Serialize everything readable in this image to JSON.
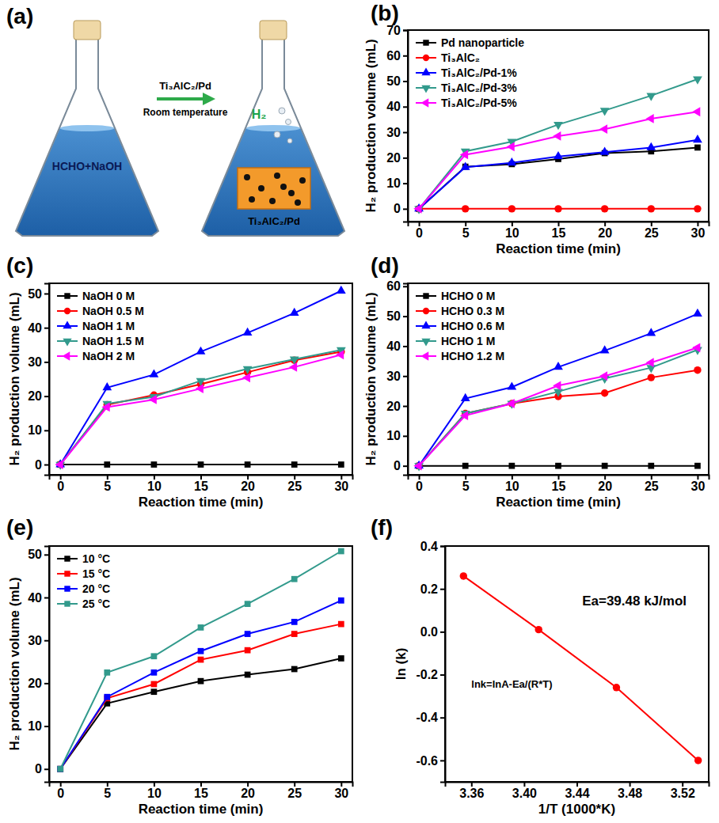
{
  "diagram": {
    "panel_label": "(a)",
    "reagent": "Ti₃AlC₂/Pd",
    "condition": "Room temperature",
    "solution": "HCHO+NaOH",
    "gas": "H₂",
    "catalyst": "Ti₃AlC₂/Pd"
  },
  "chart_data": [
    {
      "type": "line",
      "panel_label": "(b)",
      "x_label": "Reaction time (min)",
      "y_label": "H₂ production volume (mL)",
      "x": [
        0,
        5,
        10,
        15,
        20,
        25,
        30
      ],
      "xlim": [
        -1.2,
        31.2
      ],
      "xticks": [
        0,
        5,
        10,
        15,
        20,
        25,
        30
      ],
      "ylim": [
        -5,
        70
      ],
      "yticks": [
        0,
        10,
        20,
        30,
        40,
        50,
        60,
        70
      ],
      "grid": false,
      "legend": "upper left",
      "series": [
        {
          "name": "Pd nanoparticle",
          "color": "#000000",
          "marker": "square",
          "line_style": "solid",
          "values": [
            0,
            16.5,
            17.5,
            19.5,
            21.8,
            22.5,
            24
          ]
        },
        {
          "name": "Ti₃AlC₂",
          "color": "#ff0000",
          "marker": "circle",
          "line_style": "solid",
          "values": [
            0,
            0,
            0,
            0,
            0,
            0,
            0
          ]
        },
        {
          "name": "Ti₃AlC₂/Pd-1%",
          "color": "#0000ff",
          "marker": "triangle-up",
          "line_style": "solid",
          "values": [
            0,
            16.3,
            18,
            20.5,
            22.2,
            24,
            27
          ]
        },
        {
          "name": "Ti₃AlC₂/Pd-3%",
          "color": "#329a8c",
          "marker": "triangle-down",
          "line_style": "solid",
          "values": [
            0,
            22.5,
            26.3,
            33,
            38.5,
            44.3,
            50.8
          ]
        },
        {
          "name": "Ti₃AlC₂/Pd-5%",
          "color": "#ff00ff",
          "marker": "triangle-left",
          "line_style": "solid",
          "values": [
            0,
            21.2,
            24.3,
            28.5,
            31.2,
            35.3,
            38
          ]
        }
      ]
    },
    {
      "type": "line",
      "panel_label": "(c)",
      "x_label": "Reaction time (min)",
      "y_label": "H₂ production volume (mL)",
      "x": [
        0,
        5,
        10,
        15,
        20,
        25,
        30
      ],
      "xlim": [
        -1.2,
        31.2
      ],
      "xticks": [
        0,
        5,
        10,
        15,
        20,
        25,
        30
      ],
      "ylim": [
        -3,
        53
      ],
      "yticks": [
        0,
        10,
        20,
        30,
        40,
        50
      ],
      "grid": false,
      "legend": "upper left",
      "series": [
        {
          "name": "NaOH 0 M",
          "color": "#000000",
          "marker": "square",
          "line_style": "solid",
          "values": [
            0,
            0,
            0,
            0,
            0,
            0,
            0
          ]
        },
        {
          "name": "NaOH 0.5 M",
          "color": "#ff0000",
          "marker": "circle",
          "line_style": "solid",
          "values": [
            0,
            17.5,
            20.3,
            23.5,
            27,
            30.5,
            33
          ]
        },
        {
          "name": "NaOH 1 M",
          "color": "#0000ff",
          "marker": "triangle-up",
          "line_style": "solid",
          "values": [
            0,
            22.5,
            26.3,
            33,
            38.5,
            44.3,
            50.8
          ]
        },
        {
          "name": "NaOH 1.5 M",
          "color": "#329a8c",
          "marker": "triangle-down",
          "line_style": "solid",
          "values": [
            0,
            17.8,
            19.8,
            24.5,
            28,
            30.8,
            33.5
          ]
        },
        {
          "name": "NaOH 2 M",
          "color": "#ff00ff",
          "marker": "triangle-left",
          "line_style": "solid",
          "values": [
            0,
            16.8,
            19,
            22.2,
            25.4,
            28.5,
            32.1
          ]
        }
      ]
    },
    {
      "type": "line",
      "panel_label": "(d)",
      "x_label": "Reaction time (min)",
      "y_label": "H₂ production volume (mL)",
      "x": [
        0,
        5,
        10,
        15,
        20,
        25,
        30
      ],
      "xlim": [
        -1.2,
        31.2
      ],
      "xticks": [
        0,
        5,
        10,
        15,
        20,
        25,
        30
      ],
      "ylim": [
        -3,
        61
      ],
      "yticks": [
        0,
        10,
        20,
        30,
        40,
        50,
        60
      ],
      "grid": false,
      "legend": "upper left",
      "series": [
        {
          "name": "HCHO 0 M",
          "color": "#000000",
          "marker": "square",
          "line_style": "solid",
          "values": [
            0,
            0,
            0,
            0,
            0,
            0,
            0
          ]
        },
        {
          "name": "HCHO 0.3 M",
          "color": "#ff0000",
          "marker": "circle",
          "line_style": "solid",
          "values": [
            0,
            17.5,
            20.8,
            23.2,
            24.3,
            29.5,
            32
          ]
        },
        {
          "name": "HCHO 0.6 M",
          "color": "#0000ff",
          "marker": "triangle-up",
          "line_style": "solid",
          "values": [
            0,
            22.5,
            26.3,
            33,
            38.5,
            44.3,
            50.8
          ]
        },
        {
          "name": "HCHO 1 M",
          "color": "#329a8c",
          "marker": "triangle-down",
          "line_style": "solid",
          "values": [
            0,
            17.5,
            20.8,
            24.8,
            29.2,
            32.8,
            38.8
          ]
        },
        {
          "name": "HCHO 1.2 M",
          "color": "#ff00ff",
          "marker": "triangle-left",
          "line_style": "solid",
          "values": [
            0,
            16.8,
            20.8,
            26.8,
            30,
            34.5,
            39.5
          ]
        }
      ]
    },
    {
      "type": "line",
      "panel_label": "(e)",
      "x_label": "Reaction time (min)",
      "y_label": "H₂ production volume (mL)",
      "x": [
        0,
        5,
        10,
        15,
        20,
        25,
        30
      ],
      "xlim": [
        -1.2,
        31.2
      ],
      "xticks": [
        0,
        5,
        10,
        15,
        20,
        25,
        30
      ],
      "ylim": [
        -3,
        52
      ],
      "yticks": [
        0,
        10,
        20,
        30,
        40,
        50
      ],
      "grid": false,
      "legend": "upper left",
      "series": [
        {
          "name": "10 °C",
          "color": "#000000",
          "marker": "square",
          "line_style": "solid",
          "values": [
            0,
            15.3,
            18,
            20.5,
            22,
            23.3,
            25.8
          ]
        },
        {
          "name": "15 °C",
          "color": "#ff0000",
          "marker": "square",
          "line_style": "solid",
          "values": [
            0,
            16.5,
            19.8,
            25.5,
            27.7,
            31.5,
            33.8
          ]
        },
        {
          "name": "20 °C",
          "color": "#0000ff",
          "marker": "square",
          "line_style": "solid",
          "values": [
            0,
            16.8,
            22.5,
            27.5,
            31.5,
            34.3,
            39.3
          ]
        },
        {
          "name": "25 °C",
          "color": "#329a8c",
          "marker": "square",
          "line_style": "solid",
          "values": [
            0,
            22.5,
            26.3,
            33,
            38.5,
            44.3,
            50.8
          ]
        }
      ]
    },
    {
      "type": "line",
      "panel_label": "(f)",
      "x_label": "1/T (1000*K)",
      "y_label": "ln (k)",
      "annotations": [
        "Ea=39.48 kJ/mol",
        "lnk=lnA-Ea/(R*T)"
      ],
      "x": [
        3.354,
        3.411,
        3.47,
        3.532
      ],
      "xlim": [
        3.34,
        3.54
      ],
      "xticks": [
        3.36,
        {
          "value": 3.4,
          "label": "3.40"
        },
        3.44,
        3.48,
        3.52
      ],
      "ylim": [
        -0.7,
        0.4
      ],
      "yticks": [
        -0.6,
        -0.4,
        -0.2,
        {
          "value": 0,
          "label": "0.0"
        },
        0.2,
        0.4
      ],
      "grid": false,
      "series": [
        {
          "color": "#ff0000",
          "marker": "circle",
          "line_style": "solid",
          "values": [
            0.26,
            0.01,
            -0.26,
            -0.6
          ]
        }
      ]
    }
  ]
}
